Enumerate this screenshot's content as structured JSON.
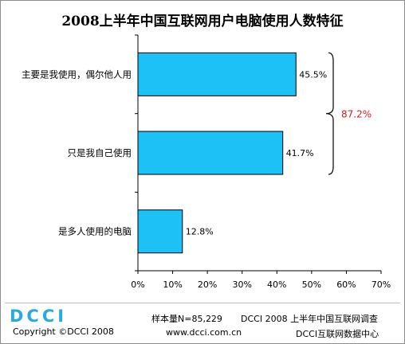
{
  "chart_data": {
    "type": "bar",
    "orientation": "horizontal",
    "title": "2008上半年中国互联网用户电脑使用人数特征",
    "categories": [
      "主要是我使用，偶尔他人用",
      "只是我自己使用",
      "是多人使用的电脑"
    ],
    "values": [
      45.5,
      41.7,
      12.8
    ],
    "value_labels": [
      "45.5%",
      "41.7%",
      "12.8%"
    ],
    "xlim": [
      0,
      70
    ],
    "x_ticks": [
      "0%",
      "10%",
      "20%",
      "30%",
      "40%",
      "50%",
      "60%",
      "70%"
    ],
    "bar_color": "#1ec1f5",
    "grid": false,
    "annotation": {
      "text": "87.2%",
      "color": "#d21e1e",
      "spans_categories": [
        0,
        1
      ]
    }
  },
  "footer": {
    "logo_text": "DCCI",
    "logo_color": "#2aa8e0",
    "copyright": "Copyright ©DCCI 2008",
    "sample": "样本量N=85,229",
    "survey": "DCCI 2008 上半年中国互联网调查",
    "website": "www.dcci.com.cn",
    "center": "DCCI互联网数据中心"
  }
}
